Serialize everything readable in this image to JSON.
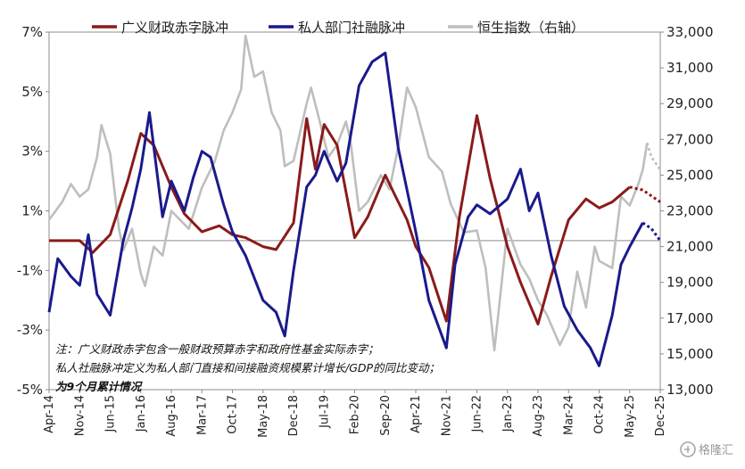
{
  "chart_data": {
    "type": "line",
    "legend": [
      {
        "name": "广义财政赤字脉冲",
        "color": "#8B1A1A"
      },
      {
        "name": "私人部门社融脉冲",
        "color": "#1A1A8C"
      },
      {
        "name": "恒生指数（右轴）",
        "color": "#BEBEBE"
      }
    ],
    "y_left": {
      "ticks": [
        "7%",
        "5%",
        "3%",
        "1%",
        "-1%",
        "-3%",
        "-5%"
      ],
      "range": [
        -5,
        7
      ]
    },
    "y_right": {
      "ticks": [
        "33,000",
        "31,000",
        "29,000",
        "27,000",
        "25,000",
        "23,000",
        "21,000",
        "19,000",
        "17,000",
        "15,000",
        "13,000"
      ],
      "range": [
        13000,
        33000
      ]
    },
    "x_ticks": [
      "Apr-14",
      "Nov-14",
      "Jun-15",
      "Jan-16",
      "Aug-16",
      "Mar-17",
      "Oct-17",
      "May-18",
      "Dec-18",
      "Jul-19",
      "Feb-20",
      "Sep-20",
      "Apr-21",
      "Nov-21",
      "Jun-22",
      "Jan-23",
      "Aug-23",
      "Mar-24",
      "Oct-24",
      "May-25",
      "Dec-25"
    ],
    "zero_line": 0,
    "notes": [
      "注：广义财政赤字包含一般财政预算赤字和政府性基金实际赤字；",
      "私人社融脉冲定义为私人部门直接和间接融资规模累计增长/GDP的同比变动；",
      "为9个月累计情况"
    ],
    "series": [
      {
        "name": "广义财政赤字脉冲",
        "axis": "left",
        "color": "#8B1A1A",
        "points": [
          [
            "Apr-14",
            0.0
          ],
          [
            "Nov-14",
            0.0
          ],
          [
            "Feb-15",
            -0.4
          ],
          [
            "Jun-15",
            0.2
          ],
          [
            "Oct-15",
            2.0
          ],
          [
            "Jan-16",
            3.6
          ],
          [
            "Apr-16",
            3.2
          ],
          [
            "Aug-16",
            1.8
          ],
          [
            "Nov-16",
            0.9
          ],
          [
            "Mar-17",
            0.3
          ],
          [
            "Jul-17",
            0.5
          ],
          [
            "Oct-17",
            0.2
          ],
          [
            "Jan-18",
            0.1
          ],
          [
            "May-18",
            -0.2
          ],
          [
            "Aug-18",
            -0.3
          ],
          [
            "Dec-18",
            0.6
          ],
          [
            "Mar-19",
            4.1
          ],
          [
            "May-19",
            2.4
          ],
          [
            "Jul-19",
            3.9
          ],
          [
            "Oct-19",
            3.2
          ],
          [
            "Feb-20",
            0.1
          ],
          [
            "May-20",
            0.8
          ],
          [
            "Sep-20",
            2.2
          ],
          [
            "Nov-20",
            1.6
          ],
          [
            "Feb-21",
            0.7
          ],
          [
            "Apr-21",
            -0.2
          ],
          [
            "Jul-21",
            -0.9
          ],
          [
            "Nov-21",
            -2.7
          ],
          [
            "Feb-22",
            0.8
          ],
          [
            "Jun-22",
            4.2
          ],
          [
            "Sep-22",
            2.1
          ],
          [
            "Jan-23",
            -0.2
          ],
          [
            "Apr-23",
            -1.4
          ],
          [
            "Aug-23",
            -2.8
          ],
          [
            "Nov-23",
            -1.2
          ],
          [
            "Mar-24",
            0.7
          ],
          [
            "Jul-24",
            1.4
          ],
          [
            "Oct-24",
            1.1
          ],
          [
            "Jan-25",
            1.3
          ],
          [
            "May-25",
            1.8
          ],
          [
            "Aug-25",
            1.7
          ],
          [
            "Dec-25",
            1.3
          ]
        ]
      },
      {
        "name": "私人部门社融脉冲",
        "axis": "left",
        "color": "#1A1A8C",
        "points": [
          [
            "Apr-14",
            -2.4
          ],
          [
            "Jun-14",
            -0.6
          ],
          [
            "Sep-14",
            -1.2
          ],
          [
            "Nov-14",
            -1.5
          ],
          [
            "Jan-15",
            0.2
          ],
          [
            "Mar-15",
            -1.8
          ],
          [
            "Jun-15",
            -2.5
          ],
          [
            "Sep-15",
            0.0
          ],
          [
            "Nov-15",
            1.1
          ],
          [
            "Jan-16",
            2.4
          ],
          [
            "Mar-16",
            4.3
          ],
          [
            "Jun-16",
            0.8
          ],
          [
            "Aug-16",
            2.0
          ],
          [
            "Nov-16",
            1.0
          ],
          [
            "Jan-17",
            2.1
          ],
          [
            "Mar-17",
            3.0
          ],
          [
            "May-17",
            2.8
          ],
          [
            "Aug-17",
            1.2
          ],
          [
            "Oct-17",
            0.3
          ],
          [
            "Jan-18",
            -0.5
          ],
          [
            "May-18",
            -2.0
          ],
          [
            "Aug-18",
            -2.4
          ],
          [
            "Oct-18",
            -3.2
          ],
          [
            "Dec-18",
            -1.0
          ],
          [
            "Mar-19",
            1.8
          ],
          [
            "May-19",
            2.2
          ],
          [
            "Jul-19",
            3.0
          ],
          [
            "Oct-19",
            2.0
          ],
          [
            "Dec-19",
            2.6
          ],
          [
            "Mar-20",
            5.2
          ],
          [
            "Jun-20",
            6.0
          ],
          [
            "Sep-20",
            6.3
          ],
          [
            "Dec-20",
            3.1
          ],
          [
            "Apr-21",
            0.3
          ],
          [
            "Jul-21",
            -2.0
          ],
          [
            "Nov-21",
            -3.6
          ],
          [
            "Jan-22",
            -0.8
          ],
          [
            "Apr-22",
            0.8
          ],
          [
            "Jun-22",
            1.2
          ],
          [
            "Sep-22",
            0.9
          ],
          [
            "Jan-23",
            1.4
          ],
          [
            "Apr-23",
            2.4
          ],
          [
            "Jun-23",
            1.0
          ],
          [
            "Aug-23",
            1.6
          ],
          [
            "Nov-23",
            -0.5
          ],
          [
            "Feb-24",
            -2.2
          ],
          [
            "May-24",
            -3.0
          ],
          [
            "Aug-24",
            -3.6
          ],
          [
            "Oct-24",
            -4.2
          ],
          [
            "Jan-25",
            -2.5
          ],
          [
            "Mar-25",
            -0.8
          ],
          [
            "May-25",
            -0.2
          ],
          [
            "Aug-25",
            0.6
          ],
          [
            "Oct-25",
            0.4
          ],
          [
            "Dec-25",
            0.0
          ]
        ]
      },
      {
        "name": "恒生指数（右轴）",
        "axis": "right",
        "color": "#BEBEBE",
        "points": [
          [
            "Apr-14",
            22500
          ],
          [
            "Jul-14",
            23500
          ],
          [
            "Sep-14",
            24500
          ],
          [
            "Nov-14",
            23800
          ],
          [
            "Jan-15",
            24200
          ],
          [
            "Mar-15",
            26000
          ],
          [
            "Apr-15",
            27800
          ],
          [
            "Jun-15",
            26200
          ],
          [
            "Aug-15",
            22000
          ],
          [
            "Sep-15",
            20800
          ],
          [
            "Nov-15",
            22000
          ],
          [
            "Jan-16",
            19500
          ],
          [
            "Feb-16",
            18800
          ],
          [
            "Apr-16",
            21000
          ],
          [
            "Jun-16",
            20500
          ],
          [
            "Aug-16",
            23000
          ],
          [
            "Dec-16",
            22000
          ],
          [
            "Mar-17",
            24300
          ],
          [
            "Jun-17",
            25800
          ],
          [
            "Aug-17",
            27500
          ],
          [
            "Oct-17",
            28500
          ],
          [
            "Dec-17",
            29800
          ],
          [
            "Jan-18",
            32800
          ],
          [
            "Mar-18",
            30500
          ],
          [
            "May-18",
            30800
          ],
          [
            "Jul-18",
            28500
          ],
          [
            "Sep-18",
            27500
          ],
          [
            "Oct-18",
            25500
          ],
          [
            "Dec-18",
            25800
          ],
          [
            "Mar-19",
            29000
          ],
          [
            "Apr-19",
            29900
          ],
          [
            "Jun-19",
            28000
          ],
          [
            "Aug-19",
            26000
          ],
          [
            "Oct-19",
            26700
          ],
          [
            "Dec-19",
            28000
          ],
          [
            "Jan-20",
            27000
          ],
          [
            "Mar-20",
            23000
          ],
          [
            "May-20",
            23500
          ],
          [
            "Aug-20",
            25000
          ],
          [
            "Oct-20",
            24200
          ],
          [
            "Dec-20",
            26600
          ],
          [
            "Feb-21",
            29900
          ],
          [
            "Apr-21",
            28800
          ],
          [
            "Jul-21",
            26000
          ],
          [
            "Oct-21",
            25200
          ],
          [
            "Dec-21",
            23400
          ],
          [
            "Mar-22",
            21800
          ],
          [
            "Jun-22",
            21900
          ],
          [
            "Aug-22",
            19800
          ],
          [
            "Oct-22",
            15200
          ],
          [
            "Jan-23",
            22000
          ],
          [
            "Apr-23",
            20000
          ],
          [
            "Jun-23",
            19200
          ],
          [
            "Aug-23",
            18000
          ],
          [
            "Oct-23",
            17200
          ],
          [
            "Jan-24",
            15500
          ],
          [
            "Mar-24",
            16500
          ],
          [
            "May-24",
            19600
          ],
          [
            "Jul-24",
            17600
          ],
          [
            "Sep-24",
            21000
          ],
          [
            "Oct-24",
            20200
          ],
          [
            "Jan-25",
            19800
          ],
          [
            "Mar-25",
            23800
          ],
          [
            "May-25",
            23300
          ],
          [
            "Jul-25",
            24500
          ],
          [
            "Aug-25",
            25300
          ],
          [
            "Sep-25",
            26800
          ],
          [
            "Oct-25",
            26000
          ],
          [
            "Dec-25",
            25300
          ]
        ]
      }
    ]
  },
  "watermark": {
    "text": "格隆汇",
    "icon": "glh-logo-icon"
  }
}
